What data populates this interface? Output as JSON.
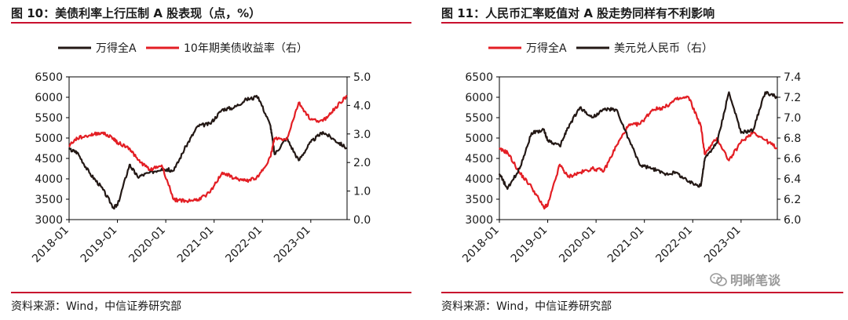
{
  "left": {
    "title": "图 10：美债利率上行压制 A 股表现（点，%）",
    "source": "资料来源：Wind，中信证券研究部"
  },
  "right": {
    "title": "图 11：人民币汇率贬值对 A 股走势同样有不利影响",
    "source": "资料来源：Wind，中信证券研究部"
  },
  "watermark": "明晰笔谈",
  "colors": {
    "black_series": "#231815",
    "red_series": "#e31e24",
    "accent": "#c8102e"
  },
  "chart_data": [
    {
      "type": "line",
      "title": "",
      "x_tick_labels": [
        "2018-01",
        "2019-01",
        "2020-01",
        "2021-01",
        "2022-01",
        "2023-01"
      ],
      "ylim_left": [
        3000,
        6500
      ],
      "yticks_left": [
        "3000",
        "3500",
        "4000",
        "4500",
        "5000",
        "5500",
        "6000",
        "6500"
      ],
      "ylim_right": [
        0.0,
        5.0
      ],
      "yticks_right": [
        "0.0",
        "1.0",
        "2.0",
        "3.0",
        "4.0",
        "5.0"
      ],
      "legend_placement": "top",
      "series": [
        {
          "name": "万得全A",
          "axis": "left",
          "color": "#231815",
          "x": [
            "2018-01",
            "2018-03",
            "2018-06",
            "2018-09",
            "2018-12",
            "2019-01",
            "2019-04",
            "2019-06",
            "2019-09",
            "2019-12",
            "2020-03",
            "2020-06",
            "2020-09",
            "2020-12",
            "2021-03",
            "2021-06",
            "2021-09",
            "2021-12",
            "2022-03",
            "2022-04",
            "2022-07",
            "2022-10",
            "2023-01",
            "2023-04",
            "2023-07",
            "2023-10"
          ],
          "values": [
            4720,
            4650,
            4150,
            3800,
            3300,
            3350,
            4350,
            4050,
            4150,
            4250,
            4200,
            4800,
            5300,
            5350,
            5700,
            5750,
            5950,
            6000,
            5300,
            4600,
            5000,
            4450,
            4900,
            5150,
            4950,
            4750
          ]
        },
        {
          "name": "10年期美债收益率（右）",
          "axis": "right",
          "color": "#e31e24",
          "x": [
            "2018-01",
            "2018-03",
            "2018-06",
            "2018-09",
            "2018-12",
            "2019-01",
            "2019-04",
            "2019-06",
            "2019-09",
            "2019-12",
            "2020-03",
            "2020-06",
            "2020-09",
            "2020-12",
            "2021-03",
            "2021-06",
            "2021-09",
            "2021-12",
            "2022-03",
            "2022-04",
            "2022-07",
            "2022-10",
            "2023-01",
            "2023-04",
            "2023-07",
            "2023-10"
          ],
          "values": [
            2.6,
            2.85,
            2.95,
            3.05,
            2.85,
            2.7,
            2.5,
            2.1,
            1.75,
            1.9,
            0.7,
            0.65,
            0.7,
            0.95,
            1.65,
            1.45,
            1.35,
            1.5,
            2.2,
            2.85,
            2.8,
            4.1,
            3.5,
            3.45,
            3.9,
            4.35
          ]
        }
      ]
    },
    {
      "type": "line",
      "title": "",
      "x_tick_labels": [
        "2018-01",
        "2019-01",
        "2020-01",
        "2021-01",
        "2022-01",
        "2023-01"
      ],
      "ylim_left": [
        3000,
        6500
      ],
      "yticks_left": [
        "3000",
        "3500",
        "4000",
        "4500",
        "5000",
        "5500",
        "6000",
        "6500"
      ],
      "ylim_right": [
        6.0,
        7.4
      ],
      "yticks_right": [
        "6.0",
        "6.2",
        "6.4",
        "6.6",
        "6.8",
        "7.0",
        "7.2",
        "7.4"
      ],
      "legend_placement": "top",
      "series": [
        {
          "name": "万得全A",
          "axis": "left",
          "color": "#e31e24",
          "x": [
            "2018-01",
            "2018-03",
            "2018-06",
            "2018-09",
            "2018-12",
            "2019-01",
            "2019-04",
            "2019-06",
            "2019-09",
            "2019-12",
            "2020-03",
            "2020-06",
            "2020-09",
            "2020-12",
            "2021-03",
            "2021-06",
            "2021-09",
            "2021-12",
            "2022-03",
            "2022-04",
            "2022-07",
            "2022-10",
            "2023-01",
            "2023-04",
            "2023-07",
            "2023-10"
          ],
          "values": [
            4720,
            4650,
            4150,
            3800,
            3300,
            3350,
            4350,
            4050,
            4150,
            4250,
            4200,
            4800,
            5300,
            5350,
            5700,
            5750,
            5950,
            6000,
            5300,
            4600,
            5000,
            4450,
            4900,
            5150,
            4950,
            4750
          ]
        },
        {
          "name": "美元兑人民币（右）",
          "axis": "right",
          "color": "#231815",
          "x": [
            "2018-01",
            "2018-03",
            "2018-06",
            "2018-09",
            "2018-12",
            "2019-01",
            "2019-04",
            "2019-06",
            "2019-09",
            "2019-12",
            "2020-03",
            "2020-06",
            "2020-09",
            "2020-12",
            "2021-03",
            "2021-06",
            "2021-09",
            "2021-12",
            "2022-03",
            "2022-04",
            "2022-07",
            "2022-10",
            "2023-01",
            "2023-04",
            "2023-07",
            "2023-10"
          ],
          "values": [
            6.45,
            6.3,
            6.5,
            6.85,
            6.88,
            6.78,
            6.72,
            6.9,
            7.1,
            7.0,
            7.08,
            7.08,
            6.8,
            6.53,
            6.5,
            6.45,
            6.46,
            6.37,
            6.33,
            6.6,
            6.75,
            7.25,
            6.85,
            6.88,
            7.25,
            7.2
          ]
        }
      ]
    }
  ]
}
